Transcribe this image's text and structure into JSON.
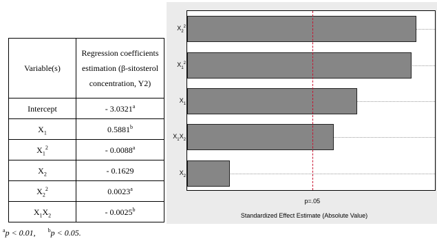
{
  "table": {
    "header": {
      "variable": "Variable(s)",
      "coefficient": "Regression coefficients estimation (β-sitosterol concentration, Y2)"
    },
    "rows": [
      {
        "variable": "Intercept",
        "value": "- 3.0321",
        "mark": "a"
      },
      {
        "variable": "X1",
        "value": "0.5881",
        "mark": "b"
      },
      {
        "variable": "X1^2",
        "value": "- 0.0088",
        "mark": "a"
      },
      {
        "variable": "X2",
        "value": "- 0.1629",
        "mark": ""
      },
      {
        "variable": "X2^2",
        "value": "0.0023",
        "mark": "a"
      },
      {
        "variable": "X1X2",
        "value": "- 0.0025",
        "mark": "b"
      }
    ]
  },
  "footnote": {
    "a_mark": "a",
    "a_text": "p < 0.01,",
    "b_mark": "b",
    "b_text": "p < 0.05."
  },
  "chart_data": {
    "type": "bar",
    "orientation": "horizontal",
    "categories": [
      "X2^2",
      "X1^2",
      "X1",
      "X1X2",
      "X2"
    ],
    "values": [
      0.97,
      0.95,
      0.72,
      0.62,
      0.18
    ],
    "xlim": [
      0,
      1.05
    ],
    "reference_line": {
      "value": 0.53,
      "label": "p=.05",
      "color": "#c8102e"
    },
    "xlabel": "Standardized Effect Estimate (Absolute Value)",
    "grid": "horizontal dotted",
    "bar_color": "#bdbdbd"
  }
}
